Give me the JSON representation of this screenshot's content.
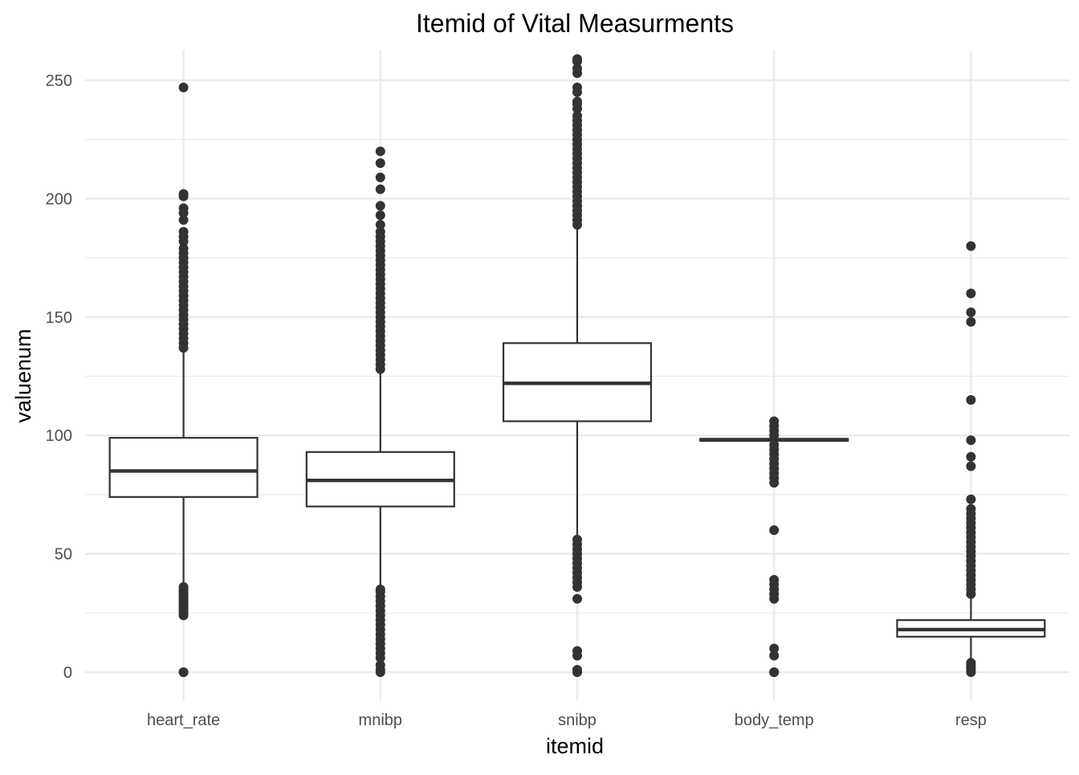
{
  "chart_data": {
    "type": "boxplot",
    "title": "Itemid of Vital Measurments",
    "xlabel": "itemid",
    "ylabel": "valuenum",
    "ylim": [
      -12.5,
      262
    ],
    "y_ticks": [
      0,
      50,
      100,
      150,
      200,
      250
    ],
    "y_tick_labels": [
      "0",
      "50",
      "100",
      "150",
      "200",
      "250"
    ],
    "grid": true,
    "colors": {
      "box_stroke": "#333333",
      "outlier": "#333333",
      "grid": "#ebebeb",
      "background": "#ffffff"
    },
    "categories": [
      "heart_rate",
      "mnibp",
      "snibp",
      "body_temp",
      "resp"
    ],
    "boxes": [
      {
        "name": "heart_rate",
        "q1": 74,
        "median": 85,
        "q3": 99,
        "whisker_low": 37,
        "whisker_high": 136,
        "outliers": [
          0,
          0,
          24,
          25,
          26,
          27,
          28,
          29,
          30,
          31,
          32,
          33,
          34,
          35,
          36,
          137,
          139,
          141,
          143,
          145,
          147,
          149,
          151,
          153,
          155,
          157,
          159,
          161,
          163,
          165,
          167,
          169,
          171,
          173,
          175,
          177,
          179,
          182,
          184,
          186,
          191,
          194,
          196,
          201,
          202,
          247
        ]
      },
      {
        "name": "mnibp",
        "q1": 70,
        "median": 81,
        "q3": 93,
        "whisker_low": 36,
        "whisker_high": 127,
        "outliers": [
          0,
          1,
          3,
          6,
          8,
          10,
          12,
          14,
          16,
          18,
          20,
          22,
          24,
          26,
          28,
          30,
          32,
          34,
          35,
          128,
          130,
          132,
          134,
          136,
          138,
          140,
          142,
          144,
          146,
          148,
          150,
          152,
          154,
          156,
          158,
          160,
          162,
          164,
          166,
          168,
          170,
          172,
          174,
          176,
          178,
          180,
          182,
          184,
          186,
          189,
          193,
          197,
          204,
          209,
          215,
          220
        ]
      },
      {
        "name": "snibp",
        "q1": 106,
        "median": 122,
        "q3": 139,
        "whisker_low": 57,
        "whisker_high": 188,
        "outliers": [
          0,
          1,
          7,
          9,
          31,
          36,
          38,
          40,
          42,
          44,
          46,
          48,
          50,
          52,
          54,
          56,
          189,
          191,
          193,
          195,
          197,
          199,
          201,
          203,
          205,
          207,
          209,
          211,
          213,
          215,
          217,
          219,
          221,
          223,
          225,
          227,
          229,
          231,
          233,
          235,
          238,
          240,
          241,
          245,
          247,
          253,
          255,
          258,
          259
        ]
      },
      {
        "name": "body_temp",
        "q1": 97.7,
        "median": 98.1,
        "q3": 98.6,
        "whisker_low": 97.5,
        "whisker_high": 99,
        "outliers": [
          0,
          0,
          7,
          10,
          31,
          33,
          35,
          37,
          39,
          60,
          80,
          82,
          84,
          86,
          88,
          90,
          92,
          94,
          96,
          100,
          102,
          104,
          106
        ]
      },
      {
        "name": "resp",
        "q1": 15,
        "median": 18,
        "q3": 22,
        "whisker_low": 5,
        "whisker_high": 32,
        "outliers": [
          0,
          1,
          2,
          3,
          4,
          33,
          35,
          37,
          39,
          41,
          43,
          45,
          47,
          49,
          51,
          53,
          55,
          57,
          59,
          61,
          63,
          65,
          67,
          69,
          73,
          87,
          91,
          98,
          115,
          148,
          152,
          160,
          180
        ]
      }
    ]
  }
}
